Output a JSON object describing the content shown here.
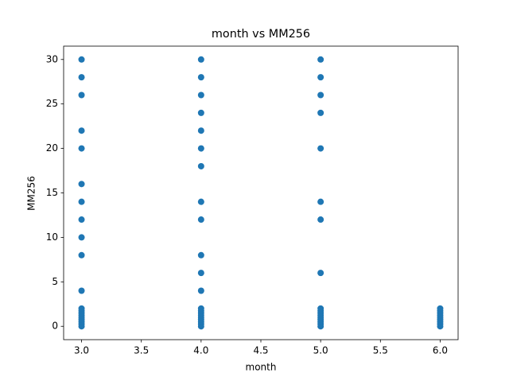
{
  "chart_data": {
    "type": "scatter",
    "title": "month vs MM256",
    "x_label": "month",
    "y_label": "MM256",
    "color": "#1f77b4",
    "x": [
      3,
      3,
      3,
      3,
      3,
      3,
      3,
      3,
      3,
      3,
      3,
      3,
      3,
      3,
      3,
      3,
      3,
      3,
      3,
      3,
      4,
      4,
      4,
      4,
      4,
      4,
      4,
      4,
      4,
      4,
      4,
      4,
      4,
      4,
      4,
      4,
      4,
      4,
      4,
      4,
      4,
      5,
      5,
      5,
      5,
      5,
      5,
      5,
      5,
      5,
      5,
      5,
      5,
      5,
      5,
      5,
      5,
      5,
      6,
      6,
      6,
      6,
      6,
      6,
      6,
      6,
      6
    ],
    "y": [
      0,
      0.25,
      0.5,
      0.75,
      1,
      1.25,
      1.5,
      1.75,
      2,
      4,
      8,
      10,
      12,
      14,
      16,
      20,
      22,
      26,
      28,
      30,
      0,
      0.25,
      0.5,
      0.75,
      1,
      1.25,
      1.5,
      1.75,
      2,
      4,
      6,
      8,
      12,
      14,
      18,
      20,
      22,
      24,
      26,
      28,
      30,
      0,
      0.25,
      0.5,
      0.75,
      1,
      1.25,
      1.5,
      1.75,
      2,
      6,
      12,
      14,
      20,
      24,
      26,
      28,
      30,
      0,
      0.25,
      0.5,
      0.75,
      1,
      1.25,
      1.5,
      1.75,
      2
    ],
    "xlim": [
      2.85,
      6.15
    ],
    "xticks": [
      {
        "value": 3,
        "label": "3.0"
      },
      {
        "value": 3.5,
        "label": "3.5"
      },
      {
        "value": 4,
        "label": "4.0"
      },
      {
        "value": 4.5,
        "label": "4.5"
      },
      {
        "value": 5,
        "label": "5.0"
      },
      {
        "value": 5.5,
        "label": "5.5"
      },
      {
        "value": 6,
        "label": "6.0"
      }
    ],
    "ylim": [
      -1.5,
      31.5
    ],
    "yticks": [
      0,
      5,
      10,
      15,
      20,
      25,
      30
    ]
  }
}
